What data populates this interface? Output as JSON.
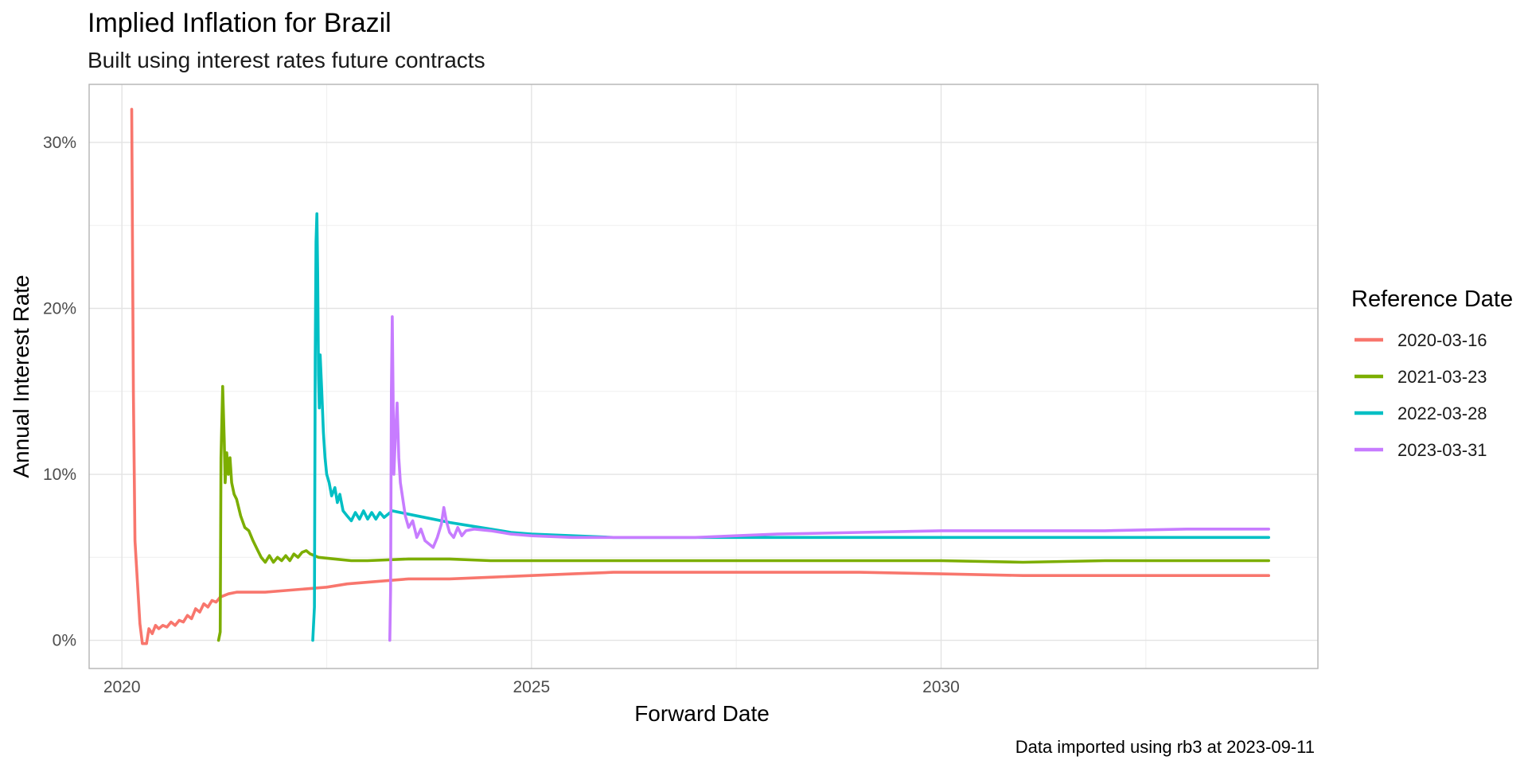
{
  "chart_data": {
    "type": "line",
    "title": "Implied Inflation for Brazil",
    "subtitle": "Built using interest rates future contracts",
    "xlabel": "Forward Date",
    "ylabel": "Annual Interest Rate",
    "caption": "Data imported using rb3 at 2023-09-11",
    "x_scale": "date (years)",
    "xlim": [
      2019.6,
      2034.6
    ],
    "ylim": [
      -0.017,
      0.335
    ],
    "x_ticks": [
      {
        "value": 2020,
        "label": "2020"
      },
      {
        "value": 2025,
        "label": "2025"
      },
      {
        "value": 2030,
        "label": "2030"
      }
    ],
    "y_ticks": [
      {
        "value": 0.0,
        "label": "0%"
      },
      {
        "value": 0.1,
        "label": "10%"
      },
      {
        "value": 0.2,
        "label": "20%"
      },
      {
        "value": 0.3,
        "label": "30%"
      }
    ],
    "grid": true,
    "legend": {
      "title": "Reference Date",
      "position": "right"
    },
    "series": [
      {
        "name": "2020-03-16",
        "color": "#F8766D",
        "points": [
          [
            2020.12,
            0.32
          ],
          [
            2020.13,
            0.23
          ],
          [
            2020.14,
            0.15
          ],
          [
            2020.16,
            0.06
          ],
          [
            2020.19,
            0.035
          ],
          [
            2020.22,
            0.01
          ],
          [
            2020.25,
            -0.002
          ],
          [
            2020.3,
            -0.002
          ],
          [
            2020.33,
            0.007
          ],
          [
            2020.37,
            0.004
          ],
          [
            2020.41,
            0.009
          ],
          [
            2020.45,
            0.007
          ],
          [
            2020.5,
            0.009
          ],
          [
            2020.55,
            0.008
          ],
          [
            2020.6,
            0.011
          ],
          [
            2020.65,
            0.009
          ],
          [
            2020.7,
            0.012
          ],
          [
            2020.75,
            0.011
          ],
          [
            2020.8,
            0.015
          ],
          [
            2020.85,
            0.013
          ],
          [
            2020.9,
            0.019
          ],
          [
            2020.95,
            0.017
          ],
          [
            2021.0,
            0.022
          ],
          [
            2021.05,
            0.02
          ],
          [
            2021.1,
            0.024
          ],
          [
            2021.15,
            0.023
          ],
          [
            2021.2,
            0.026
          ],
          [
            2021.3,
            0.028
          ],
          [
            2021.4,
            0.029
          ],
          [
            2021.5,
            0.029
          ],
          [
            2021.75,
            0.029
          ],
          [
            2022.0,
            0.03
          ],
          [
            2022.25,
            0.031
          ],
          [
            2022.5,
            0.032
          ],
          [
            2022.75,
            0.034
          ],
          [
            2023.0,
            0.035
          ],
          [
            2023.5,
            0.037
          ],
          [
            2024.0,
            0.037
          ],
          [
            2024.5,
            0.038
          ],
          [
            2025.0,
            0.039
          ],
          [
            2025.5,
            0.04
          ],
          [
            2026.0,
            0.041
          ],
          [
            2027.0,
            0.041
          ],
          [
            2028.0,
            0.041
          ],
          [
            2029.0,
            0.041
          ],
          [
            2030.0,
            0.04
          ],
          [
            2031.0,
            0.039
          ],
          [
            2032.0,
            0.039
          ],
          [
            2033.0,
            0.039
          ],
          [
            2034.0,
            0.039
          ]
        ]
      },
      {
        "name": "2021-03-23",
        "color": "#7CAE00",
        "points": [
          [
            2021.18,
            0.0
          ],
          [
            2021.2,
            0.005
          ],
          [
            2021.21,
            0.11
          ],
          [
            2021.23,
            0.153
          ],
          [
            2021.25,
            0.12
          ],
          [
            2021.26,
            0.095
          ],
          [
            2021.28,
            0.113
          ],
          [
            2021.3,
            0.1
          ],
          [
            2021.32,
            0.11
          ],
          [
            2021.34,
            0.095
          ],
          [
            2021.37,
            0.088
          ],
          [
            2021.4,
            0.085
          ],
          [
            2021.45,
            0.075
          ],
          [
            2021.5,
            0.068
          ],
          [
            2021.55,
            0.066
          ],
          [
            2021.6,
            0.06
          ],
          [
            2021.65,
            0.055
          ],
          [
            2021.7,
            0.05
          ],
          [
            2021.75,
            0.047
          ],
          [
            2021.8,
            0.051
          ],
          [
            2021.85,
            0.047
          ],
          [
            2021.9,
            0.05
          ],
          [
            2021.95,
            0.048
          ],
          [
            2022.0,
            0.051
          ],
          [
            2022.05,
            0.048
          ],
          [
            2022.1,
            0.052
          ],
          [
            2022.15,
            0.05
          ],
          [
            2022.2,
            0.053
          ],
          [
            2022.25,
            0.054
          ],
          [
            2022.3,
            0.052
          ],
          [
            2022.4,
            0.05
          ],
          [
            2022.6,
            0.049
          ],
          [
            2022.8,
            0.048
          ],
          [
            2023.0,
            0.048
          ],
          [
            2023.5,
            0.049
          ],
          [
            2024.0,
            0.049
          ],
          [
            2024.5,
            0.048
          ],
          [
            2025.0,
            0.048
          ],
          [
            2026.0,
            0.048
          ],
          [
            2027.0,
            0.048
          ],
          [
            2028.0,
            0.048
          ],
          [
            2029.0,
            0.048
          ],
          [
            2030.0,
            0.048
          ],
          [
            2031.0,
            0.047
          ],
          [
            2032.0,
            0.048
          ],
          [
            2033.0,
            0.048
          ],
          [
            2034.0,
            0.048
          ]
        ]
      },
      {
        "name": "2022-03-28",
        "color": "#00BFC4",
        "points": [
          [
            2022.33,
            0.0
          ],
          [
            2022.35,
            0.02
          ],
          [
            2022.36,
            0.17
          ],
          [
            2022.37,
            0.24
          ],
          [
            2022.38,
            0.257
          ],
          [
            2022.39,
            0.22
          ],
          [
            2022.4,
            0.16
          ],
          [
            2022.41,
            0.14
          ],
          [
            2022.42,
            0.172
          ],
          [
            2022.44,
            0.15
          ],
          [
            2022.46,
            0.125
          ],
          [
            2022.48,
            0.11
          ],
          [
            2022.5,
            0.1
          ],
          [
            2022.53,
            0.095
          ],
          [
            2022.56,
            0.087
          ],
          [
            2022.6,
            0.092
          ],
          [
            2022.63,
            0.083
          ],
          [
            2022.66,
            0.088
          ],
          [
            2022.7,
            0.078
          ],
          [
            2022.75,
            0.075
          ],
          [
            2022.8,
            0.072
          ],
          [
            2022.85,
            0.077
          ],
          [
            2022.9,
            0.073
          ],
          [
            2022.95,
            0.078
          ],
          [
            2023.0,
            0.073
          ],
          [
            2023.05,
            0.077
          ],
          [
            2023.1,
            0.073
          ],
          [
            2023.15,
            0.077
          ],
          [
            2023.2,
            0.074
          ],
          [
            2023.3,
            0.078
          ],
          [
            2023.4,
            0.077
          ],
          [
            2023.6,
            0.075
          ],
          [
            2023.8,
            0.073
          ],
          [
            2024.0,
            0.071
          ],
          [
            2024.25,
            0.069
          ],
          [
            2024.5,
            0.067
          ],
          [
            2024.75,
            0.065
          ],
          [
            2025.0,
            0.064
          ],
          [
            2025.5,
            0.063
          ],
          [
            2026.0,
            0.062
          ],
          [
            2027.0,
            0.062
          ],
          [
            2028.0,
            0.062
          ],
          [
            2029.0,
            0.062
          ],
          [
            2030.0,
            0.062
          ],
          [
            2031.0,
            0.062
          ],
          [
            2032.0,
            0.062
          ],
          [
            2033.0,
            0.062
          ],
          [
            2034.0,
            0.062
          ]
        ]
      },
      {
        "name": "2023-03-31",
        "color": "#C77CFF",
        "points": [
          [
            2023.27,
            0.0
          ],
          [
            2023.28,
            0.03
          ],
          [
            2023.29,
            0.15
          ],
          [
            2023.3,
            0.195
          ],
          [
            2023.31,
            0.15
          ],
          [
            2023.32,
            0.1
          ],
          [
            2023.34,
            0.125
          ],
          [
            2023.36,
            0.143
          ],
          [
            2023.38,
            0.11
          ],
          [
            2023.4,
            0.095
          ],
          [
            2023.43,
            0.085
          ],
          [
            2023.46,
            0.075
          ],
          [
            2023.5,
            0.068
          ],
          [
            2023.55,
            0.072
          ],
          [
            2023.6,
            0.062
          ],
          [
            2023.65,
            0.067
          ],
          [
            2023.7,
            0.06
          ],
          [
            2023.75,
            0.058
          ],
          [
            2023.8,
            0.056
          ],
          [
            2023.85,
            0.062
          ],
          [
            2023.9,
            0.07
          ],
          [
            2023.93,
            0.08
          ],
          [
            2023.96,
            0.072
          ],
          [
            2024.0,
            0.065
          ],
          [
            2024.05,
            0.062
          ],
          [
            2024.1,
            0.068
          ],
          [
            2024.15,
            0.063
          ],
          [
            2024.2,
            0.066
          ],
          [
            2024.3,
            0.067
          ],
          [
            2024.5,
            0.066
          ],
          [
            2024.75,
            0.064
          ],
          [
            2025.0,
            0.063
          ],
          [
            2025.5,
            0.062
          ],
          [
            2026.0,
            0.062
          ],
          [
            2027.0,
            0.062
          ],
          [
            2027.5,
            0.063
          ],
          [
            2028.0,
            0.064
          ],
          [
            2029.0,
            0.065
          ],
          [
            2030.0,
            0.066
          ],
          [
            2031.0,
            0.066
          ],
          [
            2032.0,
            0.066
          ],
          [
            2033.0,
            0.067
          ],
          [
            2034.0,
            0.067
          ]
        ]
      }
    ]
  }
}
